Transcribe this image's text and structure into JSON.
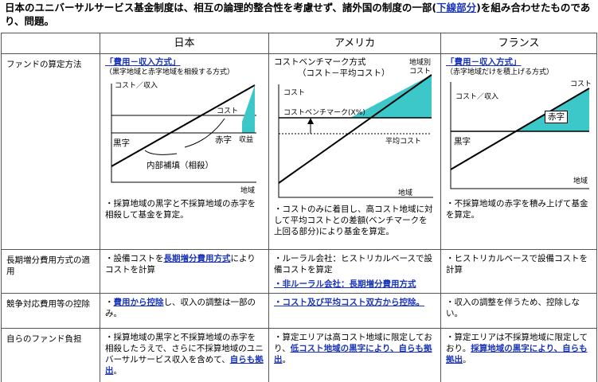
{
  "intro": {
    "text1": "日本のユニバーサルサービス基金制度は、相互の論理的整合性を考慮せず、諸外国の制度の一部(",
    "underline": "下線部分",
    "text2": ")を組み合わせたものであり、問題。"
  },
  "columns": {
    "japan": "日本",
    "usa": "アメリカ",
    "france": "フランス"
  },
  "rows": {
    "fund_calc": "ファンドの算定方法",
    "incremental": "長期増分費用方式の適用",
    "competition": "競争対応費用等の控除",
    "own_burden": "自らのファンド負担"
  },
  "japan": {
    "chart_title": "「費用－収入方式」",
    "chart_sub": "（黒字地域と赤字地域を相殺する方式）",
    "axis_y": "コスト／収入",
    "cost": "コスト",
    "deficit": "赤字",
    "revenue": "収益",
    "surplus": "黒字",
    "offset": "内部補填（相殺）",
    "axis_x": "地域",
    "note": "・採算地域の黒字と不採算地域の赤字を相殺して基金を算定。",
    "incr_pre": "・設備コストを",
    "incr_link": "長期増分費用方式",
    "incr_post": "によりコストを計算",
    "comp_link": "費用から控除",
    "comp_post": "し、収入の調整は一部のみ。",
    "burden_pre": "・採算地域の黒字と不採算地域の赤字を相殺したうえで、さらに不採算地域のユニバーサルサービス収入を含めて、",
    "burden_link": "自らも拠出",
    "burden_post": "。"
  },
  "usa": {
    "chart_title": "コストベンチマーク方式",
    "chart_sub": "（コスト－平均コスト）",
    "regional_cost": "地域別",
    "regional_cost2": "コスト",
    "cost": "コスト",
    "benchmark": "コストベンチマーク(X%)",
    "avg_cost": "平均コスト",
    "axis_x": "地域",
    "note": "・コストのみに着目し、高コスト地域に対して平均コストとの差額(ベンチマークを上回る部分)により基金を算定。",
    "incr_rural": "・ルーラル会社：ヒストリカルベースで設備コストを算定",
    "incr_nonrural": "・非ルーラル会社：長期増分費用方式",
    "comp": "・コスト及び平均コスト双方から控除。",
    "burden_pre": "・算定エリアは高コスト地域に限定しており、",
    "burden_link": "低コスト地域の黒字により、自らも拠出",
    "burden_post": "。"
  },
  "france": {
    "chart_title": "「費用－収入方式」",
    "chart_sub": "（赤字地域だけを積上げる方式）",
    "axis_y": "コスト／収入",
    "cost": "コスト",
    "deficit": "赤字",
    "surplus": "黒字",
    "axis_x": "地域",
    "note": "・不採算地域の赤字を積み上げて基金を算定。",
    "incr": "・ヒストリカルベースで設備コストを計算",
    "comp": "・収入の調整を伴うため、控除しない。",
    "burden_pre": "・算定エリアは不採算地域に限定しており。",
    "burden_link": "採算地域の黒字により、自らも拠出",
    "burden_post": "。"
  },
  "colors": {
    "accent_link": "#1a35b8",
    "fill": "#3cc8c8"
  }
}
